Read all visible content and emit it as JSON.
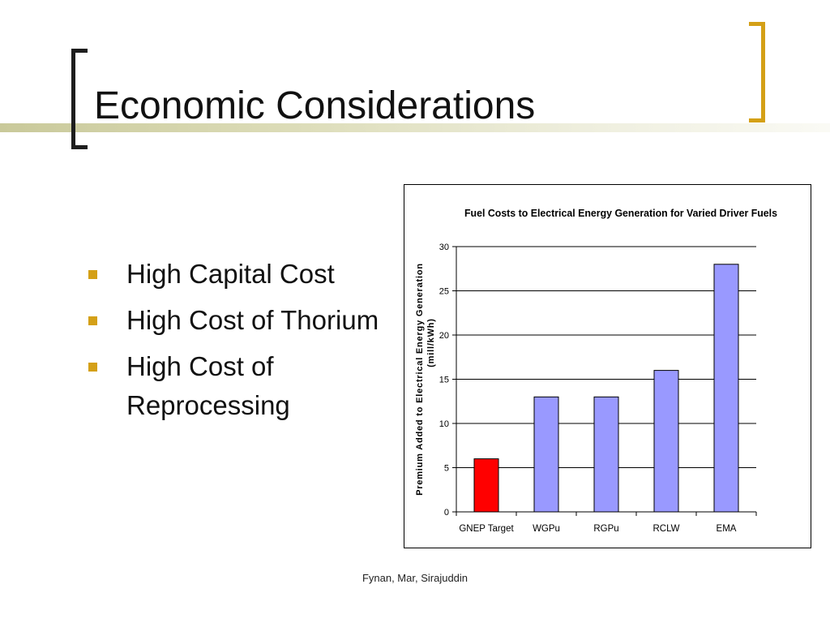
{
  "slide": {
    "title": "Economic Considerations",
    "bullets": [
      "High Capital Cost",
      "High Cost of Thorium",
      "High Cost of Reprocessing"
    ],
    "footer": "Fynan, Mar, Sirajuddin"
  },
  "colors": {
    "accent": "#d4a017",
    "bar_default": "#9999ff",
    "bar_highlight": "#ff0000"
  },
  "chart_data": {
    "type": "bar",
    "title": "Fuel Costs to Electrical Energy Generation for Varied Driver Fuels",
    "xlabel": "",
    "ylabel": "Premium Added to Electrical Energy Generation (mill/kWh)",
    "ylabel_lines": [
      "Premium Added to Electrical Energy Generation",
      "(mill/kWh)"
    ],
    "categories": [
      "GNEP Target",
      "WGPu",
      "RGPu",
      "RCLW",
      "EMA"
    ],
    "values": [
      6,
      13,
      13,
      16,
      28
    ],
    "highlight_index": 0,
    "ylim": [
      0,
      30
    ],
    "yticks": [
      0,
      5,
      10,
      15,
      20,
      25,
      30
    ],
    "grid": true,
    "legend": "none"
  }
}
